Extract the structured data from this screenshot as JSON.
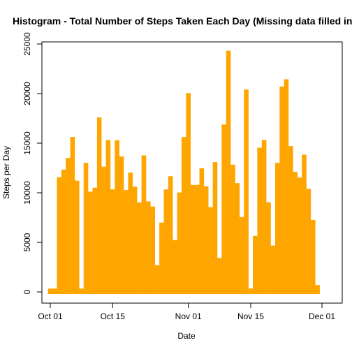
{
  "chart_data": {
    "type": "bar",
    "title": "Histogram - Total Number of Steps Taken Each Day (Missing data filled in)",
    "xlabel": "Date",
    "ylabel": "Steps per Day",
    "x": [
      "2012-10-01",
      "2012-10-02",
      "2012-10-03",
      "2012-10-04",
      "2012-10-05",
      "2012-10-06",
      "2012-10-07",
      "2012-10-08",
      "2012-10-09",
      "2012-10-10",
      "2012-10-11",
      "2012-10-12",
      "2012-10-13",
      "2012-10-14",
      "2012-10-15",
      "2012-10-16",
      "2012-10-17",
      "2012-10-18",
      "2012-10-19",
      "2012-10-20",
      "2012-10-21",
      "2012-10-22",
      "2012-10-23",
      "2012-10-24",
      "2012-10-25",
      "2012-10-26",
      "2012-10-27",
      "2012-10-28",
      "2012-10-29",
      "2012-10-30",
      "2012-10-31",
      "2012-11-01",
      "2012-11-02",
      "2012-11-03",
      "2012-11-04",
      "2012-11-05",
      "2012-11-06",
      "2012-11-07",
      "2012-11-08",
      "2012-11-09",
      "2012-11-10",
      "2012-11-11",
      "2012-11-12",
      "2012-11-13",
      "2012-11-14",
      "2012-11-15",
      "2012-11-16",
      "2012-11-17",
      "2012-11-18",
      "2012-11-19",
      "2012-11-20",
      "2012-11-21",
      "2012-11-22",
      "2012-11-23",
      "2012-11-24",
      "2012-11-25",
      "2012-11-26",
      "2012-11-27",
      "2012-11-28",
      "2012-11-29",
      "2012-11-30"
    ],
    "values": [
      130,
      130,
      11350,
      12120,
      13300,
      15420,
      11010,
      130,
      12810,
      9900,
      10300,
      17380,
      12420,
      15100,
      10130,
      15080,
      13450,
      10060,
      11830,
      10400,
      8820,
      13560,
      8920,
      8400,
      2490,
      6780,
      10120,
      11460,
      5020,
      9820,
      15410,
      19840,
      10580,
      10580,
      12250,
      10450,
      8330,
      12880,
      3220,
      16670,
      24110,
      12620,
      10760,
      7340,
      20200,
      130,
      5440,
      14340,
      15110,
      8830,
      4460,
      12800,
      20500,
      21230,
      14500,
      11880,
      11320,
      13630,
      10180,
      7040,
      480
    ],
    "xticks": [
      {
        "date": "2012-10-01",
        "label": "Oct 01"
      },
      {
        "date": "2012-10-15",
        "label": "Oct 15"
      },
      {
        "date": "2012-11-01",
        "label": "Nov 01"
      },
      {
        "date": "2012-11-15",
        "label": "Nov 15"
      },
      {
        "date": "2012-12-01",
        "label": "Dec 01"
      }
    ],
    "yticks": [
      0,
      5000,
      10000,
      15000,
      20000,
      25000
    ],
    "xlim": [
      "2012-10-01",
      "2012-12-01"
    ],
    "ylim": [
      0,
      25000
    ],
    "color": "#FFA500",
    "grid": false
  }
}
